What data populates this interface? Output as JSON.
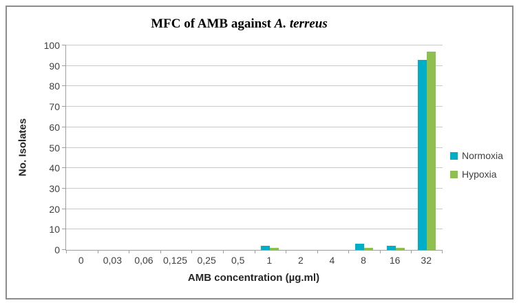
{
  "chart_data": {
    "type": "bar",
    "title": "MFC of AMB against A. terreus",
    "title_prefix": "MFC of AMB against ",
    "title_italic": "A. terreus",
    "xlabel": "AMB concentration (µg.ml)",
    "ylabel": "No. Isolates",
    "categories": [
      "0",
      "0,03",
      "0,06",
      "0,125",
      "0,25",
      "0,5",
      "1",
      "2",
      "4",
      "8",
      "16",
      "32"
    ],
    "series": [
      {
        "name": "Normoxia",
        "color": "#00AFC7",
        "values": [
          0,
          0,
          0,
          0,
          0,
          0,
          2,
          0,
          0,
          3,
          2,
          93
        ]
      },
      {
        "name": "Hypoxia",
        "color": "#8FBF4F",
        "values": [
          0,
          0,
          0,
          0,
          0,
          0,
          1,
          0,
          0,
          1,
          1,
          97
        ]
      }
    ],
    "ylim": [
      0,
      100
    ],
    "ytick_step": 10,
    "yticks": [
      0,
      10,
      20,
      30,
      40,
      50,
      60,
      70,
      80,
      90,
      100
    ],
    "grid": true,
    "legend_position": "right"
  },
  "colors": {
    "gridline": "#c9c9c9",
    "axis": "#9e9e9e",
    "frame_border": "#8c8c8c",
    "tick_text": "#3f3f3f"
  }
}
